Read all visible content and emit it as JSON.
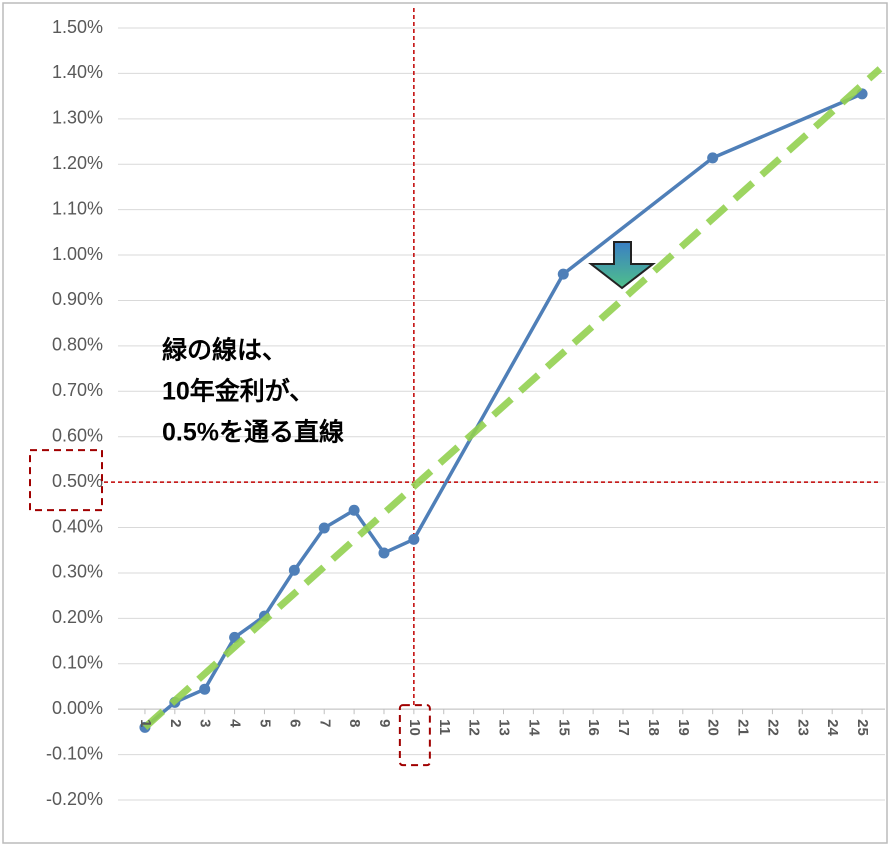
{
  "chart_data": {
    "type": "line",
    "annotation": [
      "緑の線は、",
      "10年金利が、",
      "0.5%を通る直線"
    ],
    "xlim": [
      0.5,
      25.6
    ],
    "xticks": [
      1,
      2,
      3,
      4,
      5,
      6,
      7,
      8,
      9,
      10,
      11,
      12,
      13,
      14,
      15,
      16,
      17,
      18,
      19,
      20,
      21,
      22,
      23,
      24,
      25
    ],
    "ylim": [
      -0.2,
      1.5
    ],
    "yticks": [
      {
        "value": -0.2,
        "label": "-0.20%"
      },
      {
        "value": -0.1,
        "label": "-0.10%"
      },
      {
        "value": 0,
        "label": "0.00%"
      },
      {
        "value": 0.1,
        "label": "0.10%"
      },
      {
        "value": 0.2,
        "label": "0.20%"
      },
      {
        "value": 0.3,
        "label": "0.30%"
      },
      {
        "value": 0.4,
        "label": "0.40%"
      },
      {
        "value": 0.5,
        "label": "0.50%"
      },
      {
        "value": 0.6,
        "label": "0.60%"
      },
      {
        "value": 0.7,
        "label": "0.70%"
      },
      {
        "value": 0.8,
        "label": "0.80%"
      },
      {
        "value": 0.9,
        "label": "0.90%"
      },
      {
        "value": 1.0,
        "label": "1.00%"
      },
      {
        "value": 1.1,
        "label": "1.10%"
      },
      {
        "value": 1.2,
        "label": "1.20%"
      },
      {
        "value": 1.3,
        "label": "1.30%"
      },
      {
        "value": 1.4,
        "label": "1.40%"
      },
      {
        "value": 1.5,
        "label": "1.50%"
      }
    ],
    "grid": true,
    "series": [
      {
        "color": "#4f7fb8",
        "x": [
          1,
          2,
          3,
          4,
          5,
          6,
          7,
          8,
          9,
          10,
          15,
          20,
          25
        ],
        "values": [
          -0.04,
          0.015,
          0.044,
          0.158,
          0.205,
          0.306,
          0.399,
          0.438,
          0.344,
          0.374,
          0.958,
          1.214,
          1.355
        ]
      }
    ],
    "reference_line": {
      "color": "#92d050",
      "x": [
        1,
        25.6
      ],
      "values": [
        -0.04,
        1.41
      ]
    },
    "crosshair": {
      "x": 10,
      "y": 0.5,
      "color": "#c00000"
    }
  }
}
